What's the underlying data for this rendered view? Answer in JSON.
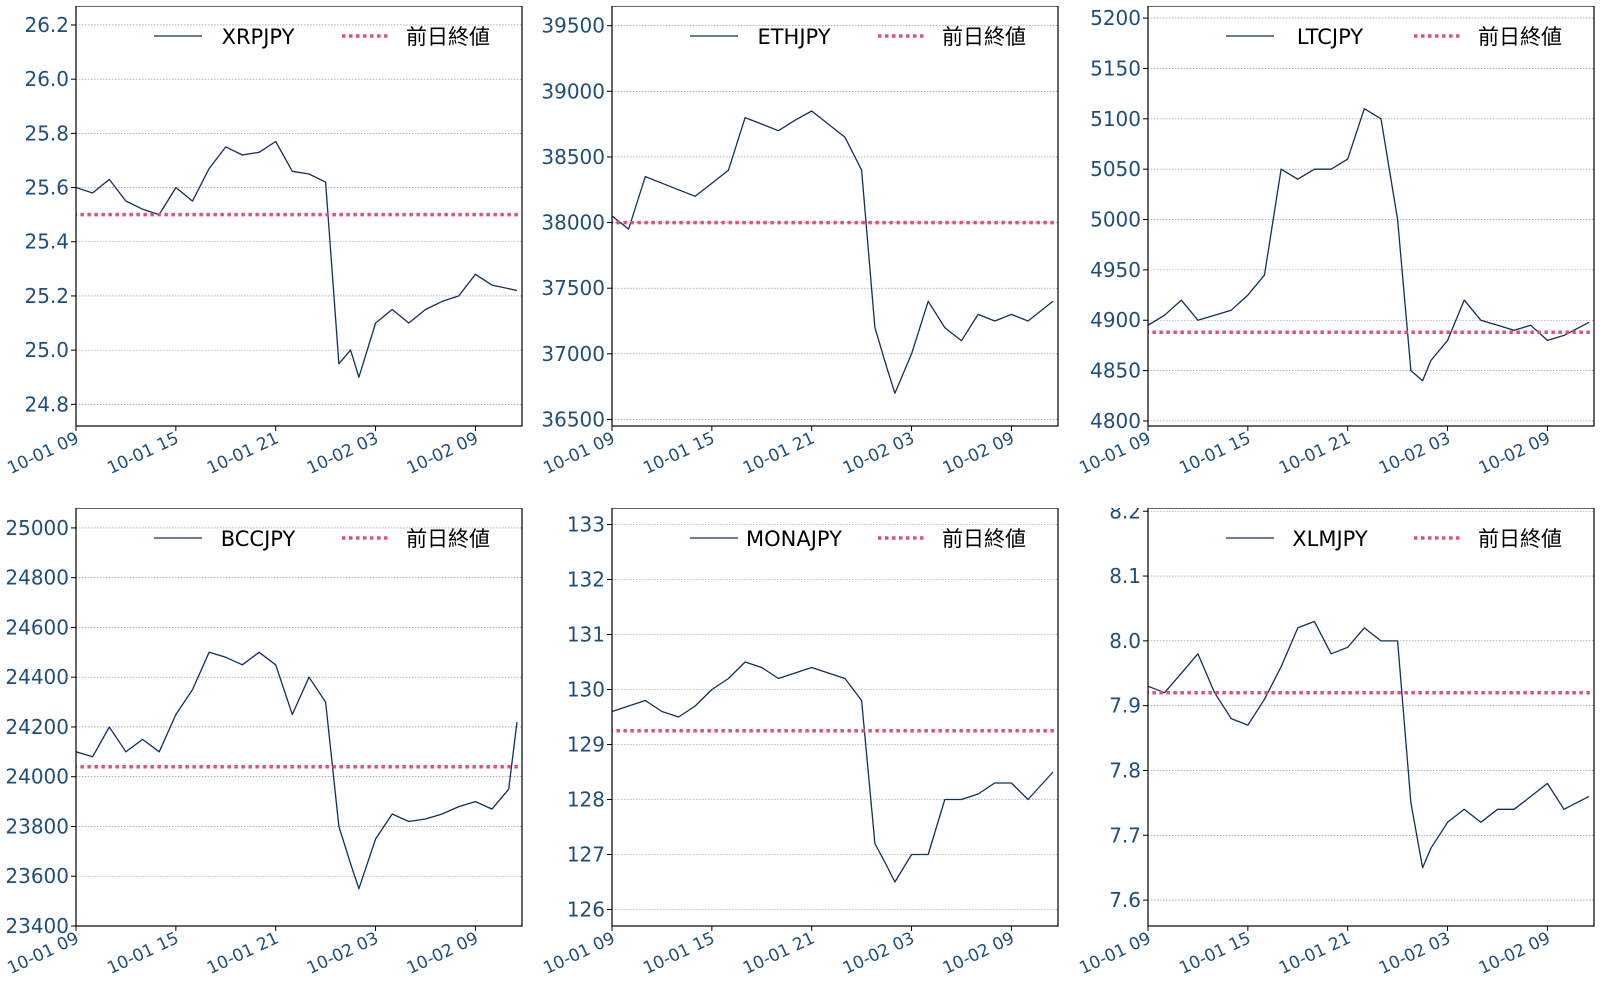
{
  "colors": {
    "series": "#10305e",
    "reference": "#e0507a",
    "tick": "#1f4e79",
    "grid": "#888888"
  },
  "x_ticks": [
    "10-01 09",
    "10-01 15",
    "10-01 21",
    "10-02 03",
    "10-02 09"
  ],
  "chart_data": [
    {
      "type": "line",
      "ylim": [
        24.72,
        26.27
      ],
      "yticks": [
        24.8,
        25.0,
        25.2,
        25.4,
        25.6,
        25.8,
        26.0,
        26.2
      ],
      "ytick_labels": [
        "24.8",
        "25.0",
        "25.2",
        "25.4",
        "25.6",
        "25.8",
        "26.0",
        "26.2"
      ],
      "x_unit": "hours since 10-01 09",
      "xlim": [
        0,
        26.8
      ],
      "legend": "top-right",
      "grid": "horizontal-dotted",
      "series": [
        {
          "name": "XRPJPY",
          "style": "solid",
          "x": [
            0,
            1,
            2,
            3,
            4,
            5,
            6,
            7,
            8,
            9,
            10,
            11,
            12,
            13,
            14,
            15,
            15.8,
            16.5,
            17,
            18,
            19,
            20,
            21,
            22,
            23,
            24,
            25,
            26.5
          ],
          "y": [
            25.6,
            25.58,
            25.63,
            25.55,
            25.52,
            25.5,
            25.6,
            25.55,
            25.67,
            25.75,
            25.72,
            25.73,
            25.77,
            25.66,
            25.65,
            25.62,
            24.95,
            25.0,
            24.9,
            25.1,
            25.15,
            25.1,
            25.15,
            25.18,
            25.2,
            25.28,
            25.24,
            25.22
          ]
        },
        {
          "name": "前日終値",
          "style": "dotted",
          "x": [
            -1,
            28
          ],
          "y": [
            25.5,
            25.5
          ]
        }
      ]
    },
    {
      "type": "line",
      "ylim": [
        36450,
        39650
      ],
      "yticks": [
        36500,
        37000,
        37500,
        38000,
        38500,
        39000,
        39500
      ],
      "ytick_labels": [
        "36500",
        "37000",
        "37500",
        "38000",
        "38500",
        "39000",
        "39500"
      ],
      "x_unit": "hours since 10-01 09",
      "xlim": [
        0,
        26.8
      ],
      "legend": "top-right",
      "grid": "horizontal-dotted",
      "series": [
        {
          "name": "ETHJPY",
          "style": "solid",
          "x": [
            0,
            1,
            2,
            3,
            4,
            5,
            6,
            7,
            8,
            9,
            10,
            11,
            12,
            13,
            14,
            15,
            15.8,
            16.5,
            17,
            18,
            19,
            20,
            21,
            22,
            23,
            24,
            25,
            26.5
          ],
          "y": [
            38050,
            37950,
            38350,
            38300,
            38250,
            38200,
            38300,
            38400,
            38800,
            38750,
            38700,
            38780,
            38850,
            38750,
            38650,
            38400,
            37200,
            36900,
            36700,
            37000,
            37400,
            37200,
            37100,
            37300,
            37250,
            37300,
            37250,
            37400
          ]
        },
        {
          "name": "前日終値",
          "style": "dotted",
          "x": [
            -1,
            28
          ],
          "y": [
            38000,
            38000
          ]
        }
      ]
    },
    {
      "type": "line",
      "ylim": [
        4795,
        5212
      ],
      "yticks": [
        4800,
        4850,
        4900,
        4950,
        5000,
        5050,
        5100,
        5150,
        5200
      ],
      "ytick_labels": [
        "4800",
        "4850",
        "4900",
        "4950",
        "5000",
        "5050",
        "5100",
        "5150",
        "5200"
      ],
      "x_unit": "hours since 10-01 09",
      "xlim": [
        0,
        26.8
      ],
      "legend": "top-right",
      "grid": "horizontal-dotted",
      "series": [
        {
          "name": "LTCJPY",
          "style": "solid",
          "x": [
            0,
            1,
            2,
            3,
            4,
            5,
            6,
            7,
            8,
            9,
            10,
            11,
            12,
            13,
            14,
            15,
            15.8,
            16.5,
            17,
            18,
            19,
            20,
            21,
            22,
            23,
            24,
            25,
            26.5
          ],
          "y": [
            4895,
            4905,
            4920,
            4900,
            4905,
            4910,
            4925,
            4945,
            5050,
            5040,
            5050,
            5050,
            5060,
            5110,
            5100,
            5000,
            4850,
            4840,
            4860,
            4880,
            4920,
            4900,
            4895,
            4890,
            4895,
            4880,
            4885,
            4898
          ]
        },
        {
          "name": "前日終値",
          "style": "dotted",
          "x": [
            -1,
            28
          ],
          "y": [
            4888,
            4888
          ]
        }
      ]
    },
    {
      "type": "line",
      "ylim": [
        23400,
        25080
      ],
      "yticks": [
        23400,
        23600,
        23800,
        24000,
        24200,
        24400,
        24600,
        24800,
        25000
      ],
      "ytick_labels": [
        "23400",
        "23600",
        "23800",
        "24000",
        "24200",
        "24400",
        "24600",
        "24800",
        "25000"
      ],
      "x_unit": "hours since 10-01 09",
      "xlim": [
        0,
        26.8
      ],
      "legend": "top-right",
      "grid": "horizontal-dotted",
      "series": [
        {
          "name": "BCCJPY",
          "style": "solid",
          "x": [
            0,
            1,
            2,
            3,
            4,
            5,
            6,
            7,
            8,
            9,
            10,
            11,
            12,
            13,
            14,
            15,
            15.8,
            16.5,
            17,
            18,
            19,
            20,
            21,
            22,
            23,
            24,
            25,
            26,
            26.5
          ],
          "y": [
            24100,
            24080,
            24200,
            24100,
            24150,
            24100,
            24250,
            24350,
            24500,
            24480,
            24450,
            24500,
            24450,
            24250,
            24400,
            24300,
            23800,
            23650,
            23550,
            23750,
            23850,
            23820,
            23830,
            23850,
            23880,
            23900,
            23870,
            23950,
            24220
          ]
        },
        {
          "name": "前日終値",
          "style": "dotted",
          "x": [
            -1,
            28
          ],
          "y": [
            24040,
            24040
          ]
        }
      ]
    },
    {
      "type": "line",
      "ylim": [
        125.7,
        133.3
      ],
      "yticks": [
        126,
        127,
        128,
        129,
        130,
        131,
        132,
        133
      ],
      "ytick_labels": [
        "126",
        "127",
        "128",
        "129",
        "130",
        "131",
        "132",
        "133"
      ],
      "x_unit": "hours since 10-01 09",
      "xlim": [
        0,
        26.8
      ],
      "legend": "top-right",
      "grid": "horizontal-dotted",
      "series": [
        {
          "name": "MONAJPY",
          "style": "solid",
          "x": [
            0,
            1,
            2,
            3,
            4,
            5,
            6,
            7,
            8,
            9,
            10,
            11,
            12,
            13,
            14,
            15,
            15.8,
            16.5,
            17,
            18,
            19,
            20,
            21,
            22,
            23,
            24,
            25,
            26.5
          ],
          "y": [
            129.6,
            129.7,
            129.8,
            129.6,
            129.5,
            129.7,
            130.0,
            130.2,
            130.5,
            130.4,
            130.2,
            130.3,
            130.4,
            130.3,
            130.2,
            129.8,
            127.2,
            126.8,
            126.5,
            127.0,
            127.0,
            128.0,
            128.0,
            128.1,
            128.3,
            128.3,
            128.0,
            128.5
          ]
        },
        {
          "name": "前日終値",
          "style": "dotted",
          "x": [
            -1,
            28
          ],
          "y": [
            129.25,
            129.25
          ]
        }
      ]
    },
    {
      "type": "line",
      "ylim": [
        7.56,
        8.205
      ],
      "yticks": [
        7.6,
        7.7,
        7.8,
        7.9,
        8.0,
        8.1,
        8.2
      ],
      "ytick_labels": [
        "7.6",
        "7.7",
        "7.8",
        "7.9",
        "8.0",
        "8.1",
        "8.2"
      ],
      "x_unit": "hours since 10-01 09",
      "xlim": [
        0,
        26.8
      ],
      "legend": "top-right",
      "grid": "horizontal-dotted",
      "series": [
        {
          "name": "XLMJPY",
          "style": "solid",
          "x": [
            0,
            1,
            2,
            3,
            4,
            5,
            6,
            7,
            8,
            9,
            10,
            11,
            12,
            13,
            14,
            15,
            15.8,
            16.5,
            17,
            18,
            19,
            20,
            21,
            22,
            23,
            24,
            25,
            26.5
          ],
          "y": [
            7.93,
            7.92,
            7.95,
            7.98,
            7.92,
            7.88,
            7.87,
            7.91,
            7.96,
            8.02,
            8.03,
            7.98,
            7.99,
            8.02,
            8.0,
            8.0,
            7.75,
            7.65,
            7.68,
            7.72,
            7.74,
            7.72,
            7.74,
            7.74,
            7.76,
            7.78,
            7.74,
            7.76
          ]
        },
        {
          "name": "前日終値",
          "style": "dotted",
          "x": [
            -1,
            28
          ],
          "y": [
            7.92,
            7.92
          ]
        }
      ]
    }
  ]
}
